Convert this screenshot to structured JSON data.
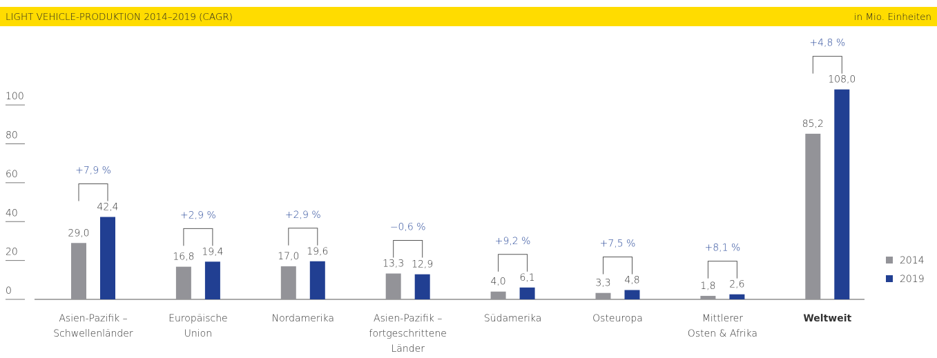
{
  "chart_data": {
    "type": "bar",
    "title": "LIGHT VEHICLE-PRODUKTION 2014–2019 (CAGR)",
    "unit_label": "in Mio. Einheiten",
    "categories": [
      [
        "Asien-Pazifik –",
        "Schwellenländer"
      ],
      [
        "Europäische",
        "Union"
      ],
      [
        "Nordamerika"
      ],
      [
        "Asien-Pazifik –",
        "fortgeschrittene",
        "Länder"
      ],
      [
        "Südamerika"
      ],
      [
        "Osteuropa"
      ],
      [
        "Mittlerer",
        "Osten & Afrika"
      ],
      [
        "Weltweit"
      ]
    ],
    "series": [
      {
        "name": "2014",
        "color": "#939398",
        "values": [
          29.0,
          16.8,
          17.0,
          13.3,
          4.0,
          3.3,
          1.8,
          85.2
        ],
        "value_labels": [
          "29,0",
          "16,8",
          "17,0",
          "13,3",
          "4,0",
          "3,3",
          "1,8",
          "85,2"
        ]
      },
      {
        "name": "2019",
        "color": "#213f92",
        "values": [
          42.4,
          19.4,
          19.6,
          12.9,
          6.1,
          4.8,
          2.6,
          108.0
        ],
        "value_labels": [
          "42,4",
          "19,4",
          "19,6",
          "12,9",
          "6,1",
          "4,8",
          "2,6",
          "108,0"
        ]
      }
    ],
    "cagr_labels": [
      "+7,9 %",
      "+2,9 %",
      "+2,9 %",
      "−0,6 %",
      "+9,2 %",
      "+7,5 %",
      "+8,1 %",
      "+4,8 %"
    ],
    "ylim": [
      0,
      110
    ],
    "yticks": [
      0,
      20,
      40,
      60,
      80,
      100
    ],
    "legend": "right"
  }
}
